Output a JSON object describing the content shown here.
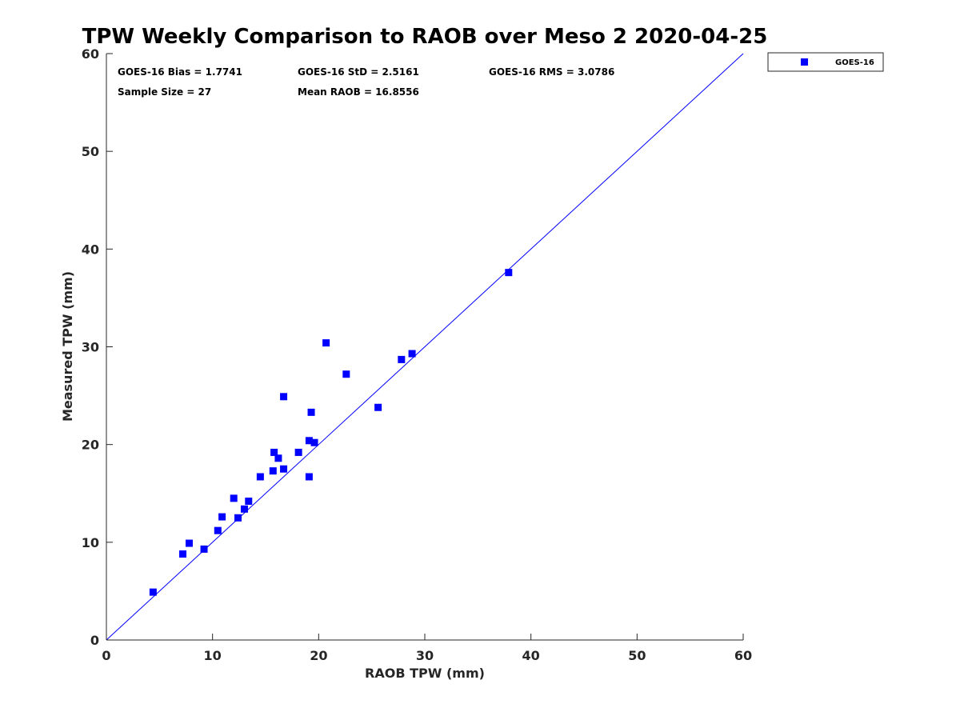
{
  "chart_data": {
    "type": "scatter",
    "title": "TPW Weekly Comparison to RAOB over Meso 2 2020-04-25",
    "xlabel": "RAOB TPW (mm)",
    "ylabel": "Measured TPW (mm)",
    "xlim": [
      0,
      60
    ],
    "ylim": [
      0,
      60
    ],
    "xticks": [
      0,
      10,
      20,
      30,
      40,
      50,
      60
    ],
    "yticks": [
      0,
      10,
      20,
      30,
      40,
      50,
      60
    ],
    "grid": false,
    "legend_position": "outside-top-right",
    "reference_line": {
      "name": "1:1 line",
      "x": [
        0,
        60
      ],
      "y": [
        0,
        60
      ],
      "color": "#0000ff"
    },
    "series": [
      {
        "name": "GOES-16",
        "marker": "square",
        "color": "#0000ff",
        "points": [
          {
            "x": 4.4,
            "y": 4.9
          },
          {
            "x": 7.2,
            "y": 8.8
          },
          {
            "x": 7.8,
            "y": 9.9
          },
          {
            "x": 9.2,
            "y": 9.3
          },
          {
            "x": 10.5,
            "y": 11.2
          },
          {
            "x": 10.9,
            "y": 12.6
          },
          {
            "x": 12.0,
            "y": 14.5
          },
          {
            "x": 12.4,
            "y": 12.5
          },
          {
            "x": 13.0,
            "y": 13.4
          },
          {
            "x": 13.4,
            "y": 14.2
          },
          {
            "x": 14.5,
            "y": 16.7
          },
          {
            "x": 15.7,
            "y": 17.3
          },
          {
            "x": 15.8,
            "y": 19.2
          },
          {
            "x": 16.2,
            "y": 18.6
          },
          {
            "x": 16.7,
            "y": 17.5
          },
          {
            "x": 16.7,
            "y": 24.9
          },
          {
            "x": 18.1,
            "y": 19.2
          },
          {
            "x": 19.1,
            "y": 16.7
          },
          {
            "x": 19.1,
            "y": 20.4
          },
          {
            "x": 19.3,
            "y": 23.3
          },
          {
            "x": 19.6,
            "y": 20.2
          },
          {
            "x": 20.7,
            "y": 30.4
          },
          {
            "x": 22.6,
            "y": 27.2
          },
          {
            "x": 25.6,
            "y": 23.8
          },
          {
            "x": 27.8,
            "y": 28.7
          },
          {
            "x": 28.8,
            "y": 29.3
          },
          {
            "x": 37.9,
            "y": 37.6
          }
        ]
      }
    ],
    "annotations": [
      "GOES-16 Bias = 1.7741",
      "GOES-16 StD = 2.5161",
      "GOES-16 RMS = 3.0786",
      "Sample Size = 27",
      "Mean RAOB = 16.8556"
    ],
    "legend": [
      "GOES-16"
    ]
  }
}
